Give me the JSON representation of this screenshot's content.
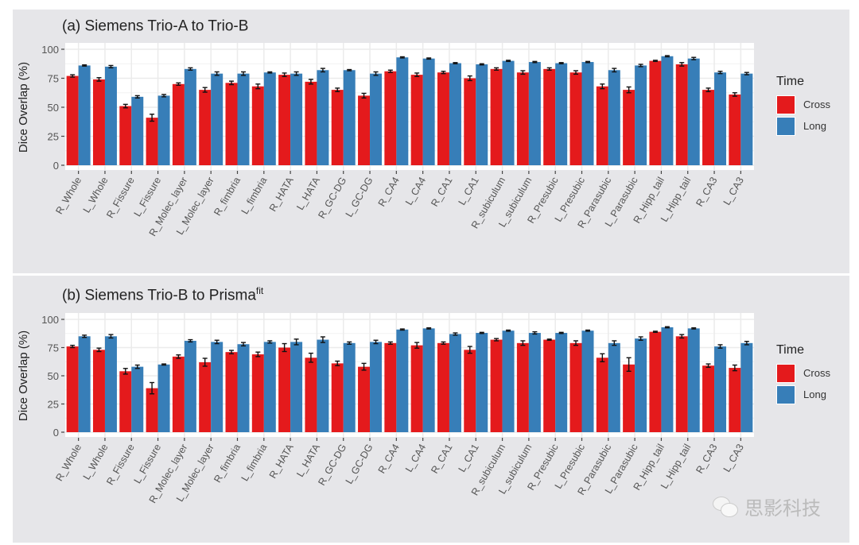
{
  "chart_data": [
    {
      "type": "bar",
      "title": "(a) Siemens Trio-A to Trio-B",
      "title_sup": "",
      "xlabel": "",
      "ylabel": "Dice Overlap (%)",
      "ylim": [
        0,
        100
      ],
      "yticks": [
        0,
        25,
        50,
        75,
        100
      ],
      "grid": true,
      "legend": {
        "title": "Time",
        "position": "right"
      },
      "categories": [
        "R_Whole",
        "L_Whole",
        "R_Fissure",
        "L_Fissure",
        "R_Molec_layer",
        "L_Molec_layer",
        "R_fimbria",
        "L_fimbria",
        "R_HATA",
        "L_HATA",
        "R_GC-DG",
        "L_GC-DG",
        "R_CA4",
        "L_CA4",
        "R_CA1",
        "L_CA1",
        "R_subiculum",
        "L_subiculum",
        "R_Presubic",
        "L_Presubic",
        "R_Parasubic",
        "L_Parasubic",
        "R_Hipp_tail",
        "L_Hipp_tail",
        "R_CA3",
        "L_CA3"
      ],
      "series": [
        {
          "name": "Cross",
          "color": "#e41a1c",
          "values": [
            77,
            74,
            51,
            41,
            70,
            65,
            71,
            68,
            78,
            72,
            65,
            60,
            81,
            78,
            80,
            75,
            83,
            80,
            83,
            80,
            68,
            65,
            90,
            87,
            65,
            61
          ],
          "errors": [
            1,
            1.5,
            1.5,
            3,
            1,
            2,
            1.5,
            2,
            1.5,
            2,
            1.5,
            2,
            1,
            1.5,
            1,
            2,
            1,
            1.5,
            1,
            1.5,
            2,
            2.5,
            0.5,
            1.5,
            1.5,
            1.5
          ]
        },
        {
          "name": "Long",
          "color": "#377eb8",
          "values": [
            86,
            85,
            59,
            60,
            83,
            79,
            79,
            80,
            79,
            82,
            82,
            79,
            93,
            92,
            88,
            87,
            90,
            89,
            88,
            89,
            82,
            86,
            94,
            92,
            80,
            79
          ],
          "errors": [
            0.5,
            1,
            1,
            1,
            1,
            1.5,
            1.5,
            0.5,
            1.5,
            1.5,
            0.5,
            1.5,
            0.5,
            0.5,
            0.5,
            0.5,
            0.5,
            0.5,
            0.5,
            0.5,
            1.5,
            1,
            0.5,
            1,
            1,
            1
          ]
        }
      ]
    },
    {
      "type": "bar",
      "title": "(b) Siemens Trio-B to Prisma",
      "title_sup": "fit",
      "xlabel": "",
      "ylabel": "Dice Overlap (%)",
      "ylim": [
        0,
        100
      ],
      "yticks": [
        0,
        25,
        50,
        75,
        100
      ],
      "grid": true,
      "legend": {
        "title": "Time",
        "position": "right"
      },
      "categories": [
        "R_Whole",
        "L_Whole",
        "R_Fissure",
        "L_Fissure",
        "R_Molec_layer",
        "L_Molec_layer",
        "R_fimbria",
        "L_fimbria",
        "R_HATA",
        "L_HATA",
        "R_GC-DG",
        "L_GC-DG",
        "R_CA4",
        "L_CA4",
        "R_CA1",
        "L_CA1",
        "R_subiculum",
        "L_subiculum",
        "R_Presubic",
        "L_Presubic",
        "R_Parasubic",
        "L_Parasubic",
        "R_Hipp_tail",
        "L_Hipp_tail",
        "R_CA3",
        "L_CA3"
      ],
      "series": [
        {
          "name": "Cross",
          "color": "#e41a1c",
          "values": [
            76,
            73,
            54,
            39,
            67,
            62,
            71,
            69,
            75,
            66,
            61,
            58,
            79,
            77,
            79,
            73,
            82,
            79,
            82,
            79,
            66,
            60,
            89,
            85,
            59,
            57
          ],
          "errors": [
            1,
            1.5,
            2.5,
            5,
            1.5,
            3.5,
            1.5,
            2,
            3.5,
            4,
            2,
            3,
            1,
            2.5,
            1,
            3,
            1,
            2,
            0.5,
            2,
            3.5,
            6,
            0.5,
            1.5,
            1.5,
            2.5
          ]
        },
        {
          "name": "Long",
          "color": "#377eb8",
          "values": [
            85,
            85,
            58,
            60,
            81,
            80,
            78,
            80,
            80,
            82,
            79,
            80,
            91,
            92,
            87,
            88,
            90,
            88,
            88,
            90,
            79,
            83,
            93,
            92,
            76,
            79
          ],
          "errors": [
            1,
            1.5,
            1.5,
            0.5,
            1,
            1.5,
            1.5,
            1,
            2.5,
            2.5,
            1,
            1.5,
            0.5,
            0.5,
            1,
            0.5,
            0.5,
            1,
            0.5,
            0.5,
            2,
            1.5,
            0.5,
            0.5,
            1.5,
            1.5
          ]
        }
      ]
    }
  ],
  "watermark": {
    "icon": "wechat-icon",
    "text": "思影科技"
  }
}
